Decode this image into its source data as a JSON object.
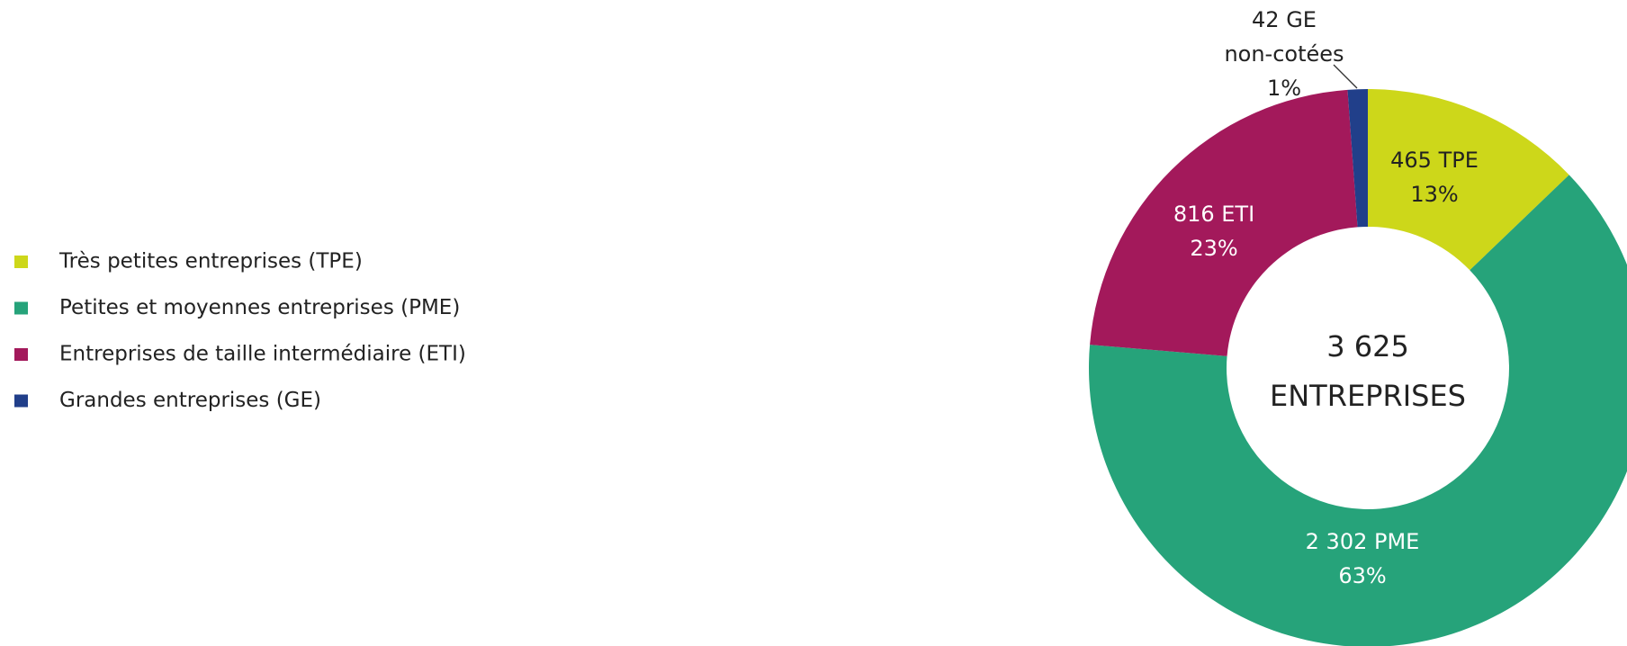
{
  "chart_data": {
    "type": "donut",
    "categories": [
      "Très petites entreprises (TPE)",
      "Petites et moyennes entreprises (PME)",
      "Entreprises de taille intermédiaire (ETI)",
      "Grandes entreprises (GE)"
    ],
    "values": [
      465,
      2302,
      816,
      42
    ],
    "value_labels": [
      [
        "465 TPE"
      ],
      [
        "2 302 PME"
      ],
      [
        "816 ETI"
      ],
      [
        "42 GE",
        "non-cotées"
      ]
    ],
    "percentages": [
      13,
      63,
      23,
      1
    ],
    "percentage_labels": [
      "13%",
      "63%",
      "23%",
      "1%"
    ],
    "colors": [
      "#cdd71a",
      "#26a37a",
      "#a3195b",
      "#213f8a"
    ],
    "center_label": [
      "3 625",
      "ENTREPRISES"
    ],
    "legend": "left"
  }
}
